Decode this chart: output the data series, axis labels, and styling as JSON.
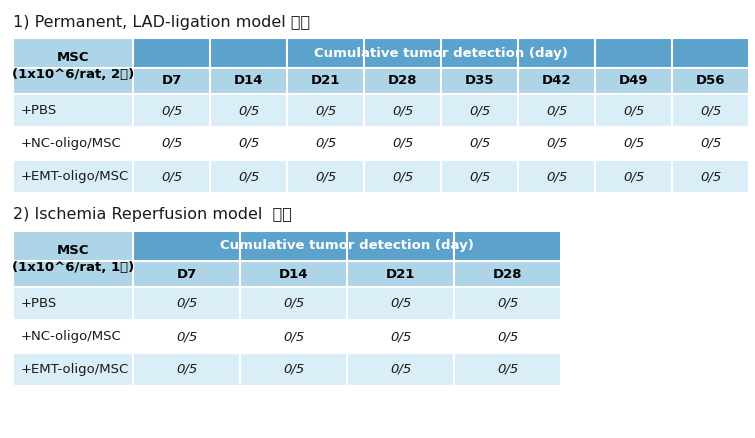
{
  "title1": "1) Permanent, LAD-ligation model 이식",
  "title2": "2) Ischemia Reperfusion model  이식",
  "header_col1_1": "MSC\n(1x10^6/rat, 2회)",
  "header_col1_2": "MSC\n(1x10^6/rat, 1회)",
  "header_detection": "Cumulative tumor detection (day)",
  "table1_days": [
    "D7",
    "D14",
    "D21",
    "D28",
    "D35",
    "D42",
    "D49",
    "D56"
  ],
  "table2_days": [
    "D7",
    "D14",
    "D21",
    "D28"
  ],
  "table1_rows": [
    [
      "+PBS",
      "0/5",
      "0/5",
      "0/5",
      "0/5",
      "0/5",
      "0/5",
      "0/5",
      "0/5"
    ],
    [
      "+NC-oligo/MSC",
      "0/5",
      "0/5",
      "0/5",
      "0/5",
      "0/5",
      "0/5",
      "0/5",
      "0/5"
    ],
    [
      "+EMT-oligo/MSC",
      "0/5",
      "0/5",
      "0/5",
      "0/5",
      "0/5",
      "0/5",
      "0/5",
      "0/5"
    ]
  ],
  "table2_rows": [
    [
      "+PBS",
      "0/5",
      "0/5",
      "0/5",
      "0/5"
    ],
    [
      "+NC-oligo/MSC",
      "0/5",
      "0/5",
      "0/5",
      "0/5"
    ],
    [
      "+EMT-oligo/MSC",
      "0/5",
      "0/5",
      "0/5",
      "0/5"
    ]
  ],
  "color_header_dark": "#5ba3cc",
  "color_header_light": "#aed4e8",
  "color_row_odd": "#daeef8",
  "color_row_even": "#ffffff",
  "color_border": "#ffffff",
  "text_color_header_dark": "#ffffff",
  "text_color_header_light": "#000000",
  "text_color_body": "#1a1a1a",
  "title_color": "#1a1a1a",
  "bg_color": "#ffffff",
  "title_fontsize": 11.5,
  "header_fontsize": 9.5,
  "body_fontsize": 9.5
}
